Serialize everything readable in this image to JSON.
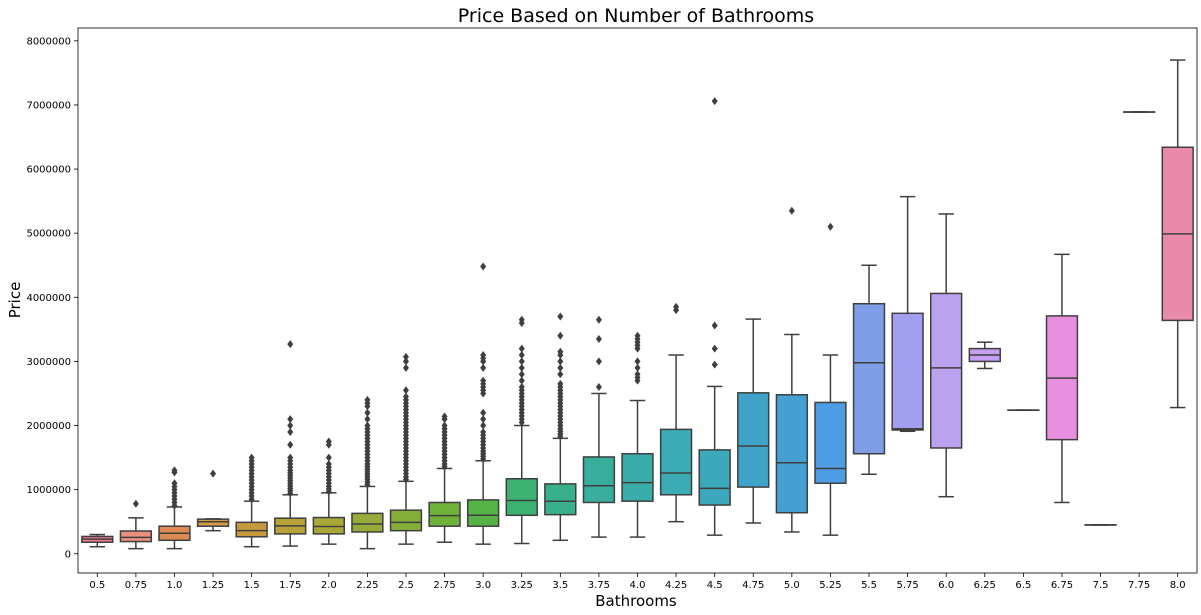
{
  "chart_data": {
    "type": "box",
    "title": "Price Based on Number of Bathrooms",
    "xlabel": "Bathrooms",
    "ylabel": "Price",
    "ylim": [
      -300000,
      8200000
    ],
    "yticks": [
      0,
      1000000,
      2000000,
      3000000,
      4000000,
      5000000,
      6000000,
      7000000,
      8000000
    ],
    "ytick_labels": [
      "0",
      "1000000",
      "2000000",
      "3000000",
      "4000000",
      "5000000",
      "6000000",
      "7000000",
      "8000000"
    ],
    "grid": false,
    "legend": "none",
    "categories": [
      "0.5",
      "0.75",
      "1.0",
      "1.25",
      "1.5",
      "1.75",
      "2.0",
      "2.25",
      "2.5",
      "2.75",
      "3.0",
      "3.25",
      "3.5",
      "3.75",
      "4.0",
      "4.25",
      "4.5",
      "4.75",
      "5.0",
      "5.25",
      "5.5",
      "5.75",
      "6.0",
      "6.25",
      "6.5",
      "6.75",
      "7.5",
      "7.75",
      "8.0"
    ],
    "colors": [
      "#f27b8a",
      "#e9907c",
      "#de8a55",
      "#d49c45",
      "#c79a40",
      "#b8a238",
      "#a8a838",
      "#97ab38",
      "#85ae39",
      "#70b13a",
      "#56b446",
      "#3cb271",
      "#38b08b",
      "#39ae9c",
      "#3aaca9",
      "#3bacb3",
      "#3ca8bb",
      "#40a4c8",
      "#45a0d2",
      "#4e9ce3",
      "#7e9ee8",
      "#a39ff0",
      "#bba2ee",
      "#c69ff0",
      "#d598f0",
      "#e88fe0",
      "#ed8bd0",
      "#ef87bd",
      "#e98aaa"
    ],
    "boxes": [
      {
        "x": "0.5",
        "whislo": 110000,
        "q1": 180000,
        "med": 228000,
        "q3": 270000,
        "whishi": 300000,
        "fliers": []
      },
      {
        "x": "0.75",
        "whislo": 80000,
        "q1": 190000,
        "med": 255000,
        "q3": 355000,
        "whishi": 560000,
        "fliers": [
          780000
        ]
      },
      {
        "x": "1.0",
        "whislo": 80000,
        "q1": 210000,
        "med": 320000,
        "q3": 430000,
        "whishi": 730000,
        "fliers": [
          750000,
          800000,
          850000,
          900000,
          950000,
          1000000,
          1050000,
          1100000,
          1270000,
          1300000
        ]
      },
      {
        "x": "1.25",
        "whislo": 360000,
        "q1": 430000,
        "med": 500000,
        "q3": 540000,
        "whishi": 545000,
        "fliers": [
          1250000
        ]
      },
      {
        "x": "1.5",
        "whislo": 110000,
        "q1": 265000,
        "med": 360000,
        "q3": 490000,
        "whishi": 820000,
        "fliers": [
          850000,
          900000,
          950000,
          1000000,
          1050000,
          1100000,
          1150000,
          1200000,
          1250000,
          1300000,
          1350000,
          1400000,
          1450000,
          1500000
        ]
      },
      {
        "x": "1.75",
        "whislo": 120000,
        "q1": 310000,
        "med": 435000,
        "q3": 555000,
        "whishi": 920000,
        "fliers": [
          940000,
          980000,
          1020000,
          1060000,
          1100000,
          1140000,
          1180000,
          1220000,
          1260000,
          1300000,
          1350000,
          1400000,
          1450000,
          1500000,
          1700000,
          1900000,
          2000000,
          2100000,
          3270000
        ]
      },
      {
        "x": "2.0",
        "whislo": 150000,
        "q1": 310000,
        "med": 425000,
        "q3": 565000,
        "whishi": 950000,
        "fliers": [
          970000,
          1010000,
          1050000,
          1100000,
          1150000,
          1200000,
          1250000,
          1300000,
          1350000,
          1400000,
          1500000,
          1700000,
          1750000
        ]
      },
      {
        "x": "2.25",
        "whislo": 80000,
        "q1": 340000,
        "med": 465000,
        "q3": 630000,
        "whishi": 1050000,
        "fliers": [
          1080000,
          1120000,
          1160000,
          1200000,
          1240000,
          1280000,
          1320000,
          1360000,
          1400000,
          1450000,
          1500000,
          1550000,
          1600000,
          1650000,
          1700000,
          1750000,
          1800000,
          1850000,
          1900000,
          1950000,
          2000000,
          2100000,
          2200000,
          2300000,
          2350000,
          2400000
        ]
      },
      {
        "x": "2.5",
        "whislo": 150000,
        "q1": 360000,
        "med": 490000,
        "q3": 680000,
        "whishi": 1130000,
        "fliers": [
          1160000,
          1200000,
          1250000,
          1300000,
          1350000,
          1400000,
          1450000,
          1500000,
          1550000,
          1600000,
          1650000,
          1700000,
          1750000,
          1800000,
          1850000,
          1900000,
          1950000,
          2000000,
          2050000,
          2100000,
          2150000,
          2200000,
          2250000,
          2300000,
          2350000,
          2400000,
          2450000,
          2550000,
          2900000,
          3000000,
          3070000
        ]
      },
      {
        "x": "2.75",
        "whislo": 180000,
        "q1": 430000,
        "med": 595000,
        "q3": 800000,
        "whishi": 1330000,
        "fliers": [
          1360000,
          1400000,
          1450000,
          1500000,
          1550000,
          1600000,
          1650000,
          1700000,
          1750000,
          1800000,
          1850000,
          1900000,
          1950000,
          2000000,
          2100000,
          2140000
        ]
      },
      {
        "x": "3.0",
        "whislo": 150000,
        "q1": 430000,
        "med": 600000,
        "q3": 840000,
        "whishi": 1450000,
        "fliers": [
          1480000,
          1520000,
          1560000,
          1600000,
          1650000,
          1700000,
          1750000,
          1800000,
          1850000,
          1900000,
          2000000,
          2100000,
          2200000,
          2500000,
          2550000,
          2600000,
          2650000,
          2700000,
          2900000,
          3000000,
          3050000,
          3100000,
          4480000
        ]
      },
      {
        "x": "3.25",
        "whislo": 160000,
        "q1": 600000,
        "med": 830000,
        "q3": 1170000,
        "whishi": 2000000,
        "fliers": [
          2050000,
          2100000,
          2150000,
          2200000,
          2250000,
          2300000,
          2350000,
          2400000,
          2450000,
          2500000,
          2550000,
          2600000,
          2700000,
          2800000,
          2900000,
          3000000,
          3100000,
          3200000,
          3600000,
          3650000
        ]
      },
      {
        "x": "3.5",
        "whislo": 210000,
        "q1": 610000,
        "med": 820000,
        "q3": 1090000,
        "whishi": 1800000,
        "fliers": [
          1830000,
          1870000,
          1910000,
          1950000,
          2000000,
          2050000,
          2100000,
          2150000,
          2200000,
          2250000,
          2300000,
          2350000,
          2400000,
          2450000,
          2500000,
          2550000,
          2600000,
          2650000,
          2800000,
          2900000,
          3000000,
          3100000,
          3150000,
          3400000,
          3700000
        ]
      },
      {
        "x": "3.75",
        "whislo": 260000,
        "q1": 800000,
        "med": 1060000,
        "q3": 1510000,
        "whishi": 2500000,
        "fliers": [
          2600000,
          3000000,
          3350000,
          3650000
        ]
      },
      {
        "x": "4.0",
        "whislo": 260000,
        "q1": 820000,
        "med": 1110000,
        "q3": 1560000,
        "whishi": 2390000,
        "fliers": [
          2700000,
          2750000,
          2800000,
          2900000,
          3000000,
          3200000,
          3250000,
          3300000,
          3350000,
          3400000
        ]
      },
      {
        "x": "4.25",
        "whislo": 500000,
        "q1": 920000,
        "med": 1260000,
        "q3": 1940000,
        "whishi": 3100000,
        "fliers": [
          3800000,
          3850000
        ]
      },
      {
        "x": "4.5",
        "whislo": 290000,
        "q1": 760000,
        "med": 1020000,
        "q3": 1620000,
        "whishi": 2610000,
        "fliers": [
          2950000,
          3200000,
          3560000,
          7060000
        ]
      },
      {
        "x": "4.75",
        "whislo": 480000,
        "q1": 1040000,
        "med": 1680000,
        "q3": 2510000,
        "whishi": 3660000,
        "fliers": []
      },
      {
        "x": "5.0",
        "whislo": 340000,
        "q1": 640000,
        "med": 1420000,
        "q3": 2480000,
        "whishi": 3420000,
        "fliers": [
          5350000
        ]
      },
      {
        "x": "5.25",
        "whislo": 290000,
        "q1": 1100000,
        "med": 1330000,
        "q3": 2360000,
        "whishi": 3100000,
        "fliers": [
          5100000
        ]
      },
      {
        "x": "5.5",
        "whislo": 1240000,
        "q1": 1560000,
        "med": 2980000,
        "q3": 3900000,
        "whishi": 4500000,
        "fliers": []
      },
      {
        "x": "5.75",
        "whislo": 1910000,
        "q1": 1930000,
        "med": 1950000,
        "q3": 3750000,
        "whishi": 5570000,
        "fliers": []
      },
      {
        "x": "6.0",
        "whislo": 890000,
        "q1": 1650000,
        "med": 2900000,
        "q3": 4060000,
        "whishi": 5300000,
        "fliers": []
      },
      {
        "x": "6.25",
        "whislo": 2890000,
        "q1": 3000000,
        "med": 3100000,
        "q3": 3200000,
        "whishi": 3300000,
        "fliers": []
      },
      {
        "x": "6.5",
        "whislo": 2240000,
        "q1": 2240000,
        "med": 2240000,
        "q3": 2240000,
        "whishi": 2240000,
        "fliers": []
      },
      {
        "x": "6.75",
        "whislo": 800000,
        "q1": 1780000,
        "med": 2740000,
        "q3": 3710000,
        "whishi": 4670000,
        "fliers": []
      },
      {
        "x": "7.5",
        "whislo": 450000,
        "q1": 450000,
        "med": 450000,
        "q3": 450000,
        "whishi": 450000,
        "fliers": []
      },
      {
        "x": "7.75",
        "whislo": 6890000,
        "q1": 6890000,
        "med": 6890000,
        "q3": 6890000,
        "whishi": 6890000,
        "fliers": []
      },
      {
        "x": "8.0",
        "whislo": 2280000,
        "q1": 3640000,
        "med": 4990000,
        "q3": 6340000,
        "whishi": 7700000,
        "fliers": []
      }
    ]
  }
}
